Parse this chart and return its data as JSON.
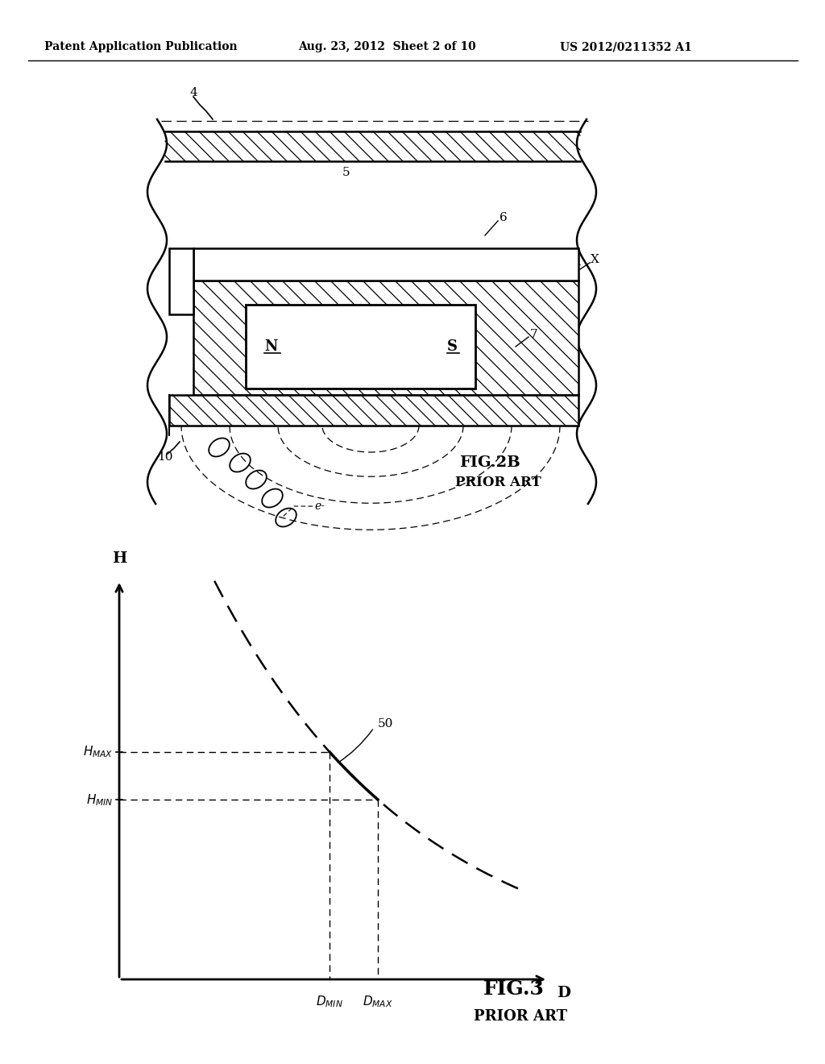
{
  "bg_color": "#ffffff",
  "header_text1": "Patent Application Publication",
  "header_text2": "Aug. 23, 2012  Sheet 2 of 10",
  "header_text3": "US 2012/0211352 A1",
  "fig2b_label": "FIG.2B",
  "fig2b_sub": "PRIOR ART",
  "fig3_label": "FIG.3",
  "fig3_sub": "PRIOR ART",
  "label_4": "4",
  "label_5": "5",
  "label_6": "6",
  "label_7": "7",
  "label_10": "10",
  "label_X": "X",
  "label_N": "N",
  "label_S": "S",
  "label_50": "50",
  "label_H": "H",
  "label_D": "D",
  "label_e": "e-"
}
